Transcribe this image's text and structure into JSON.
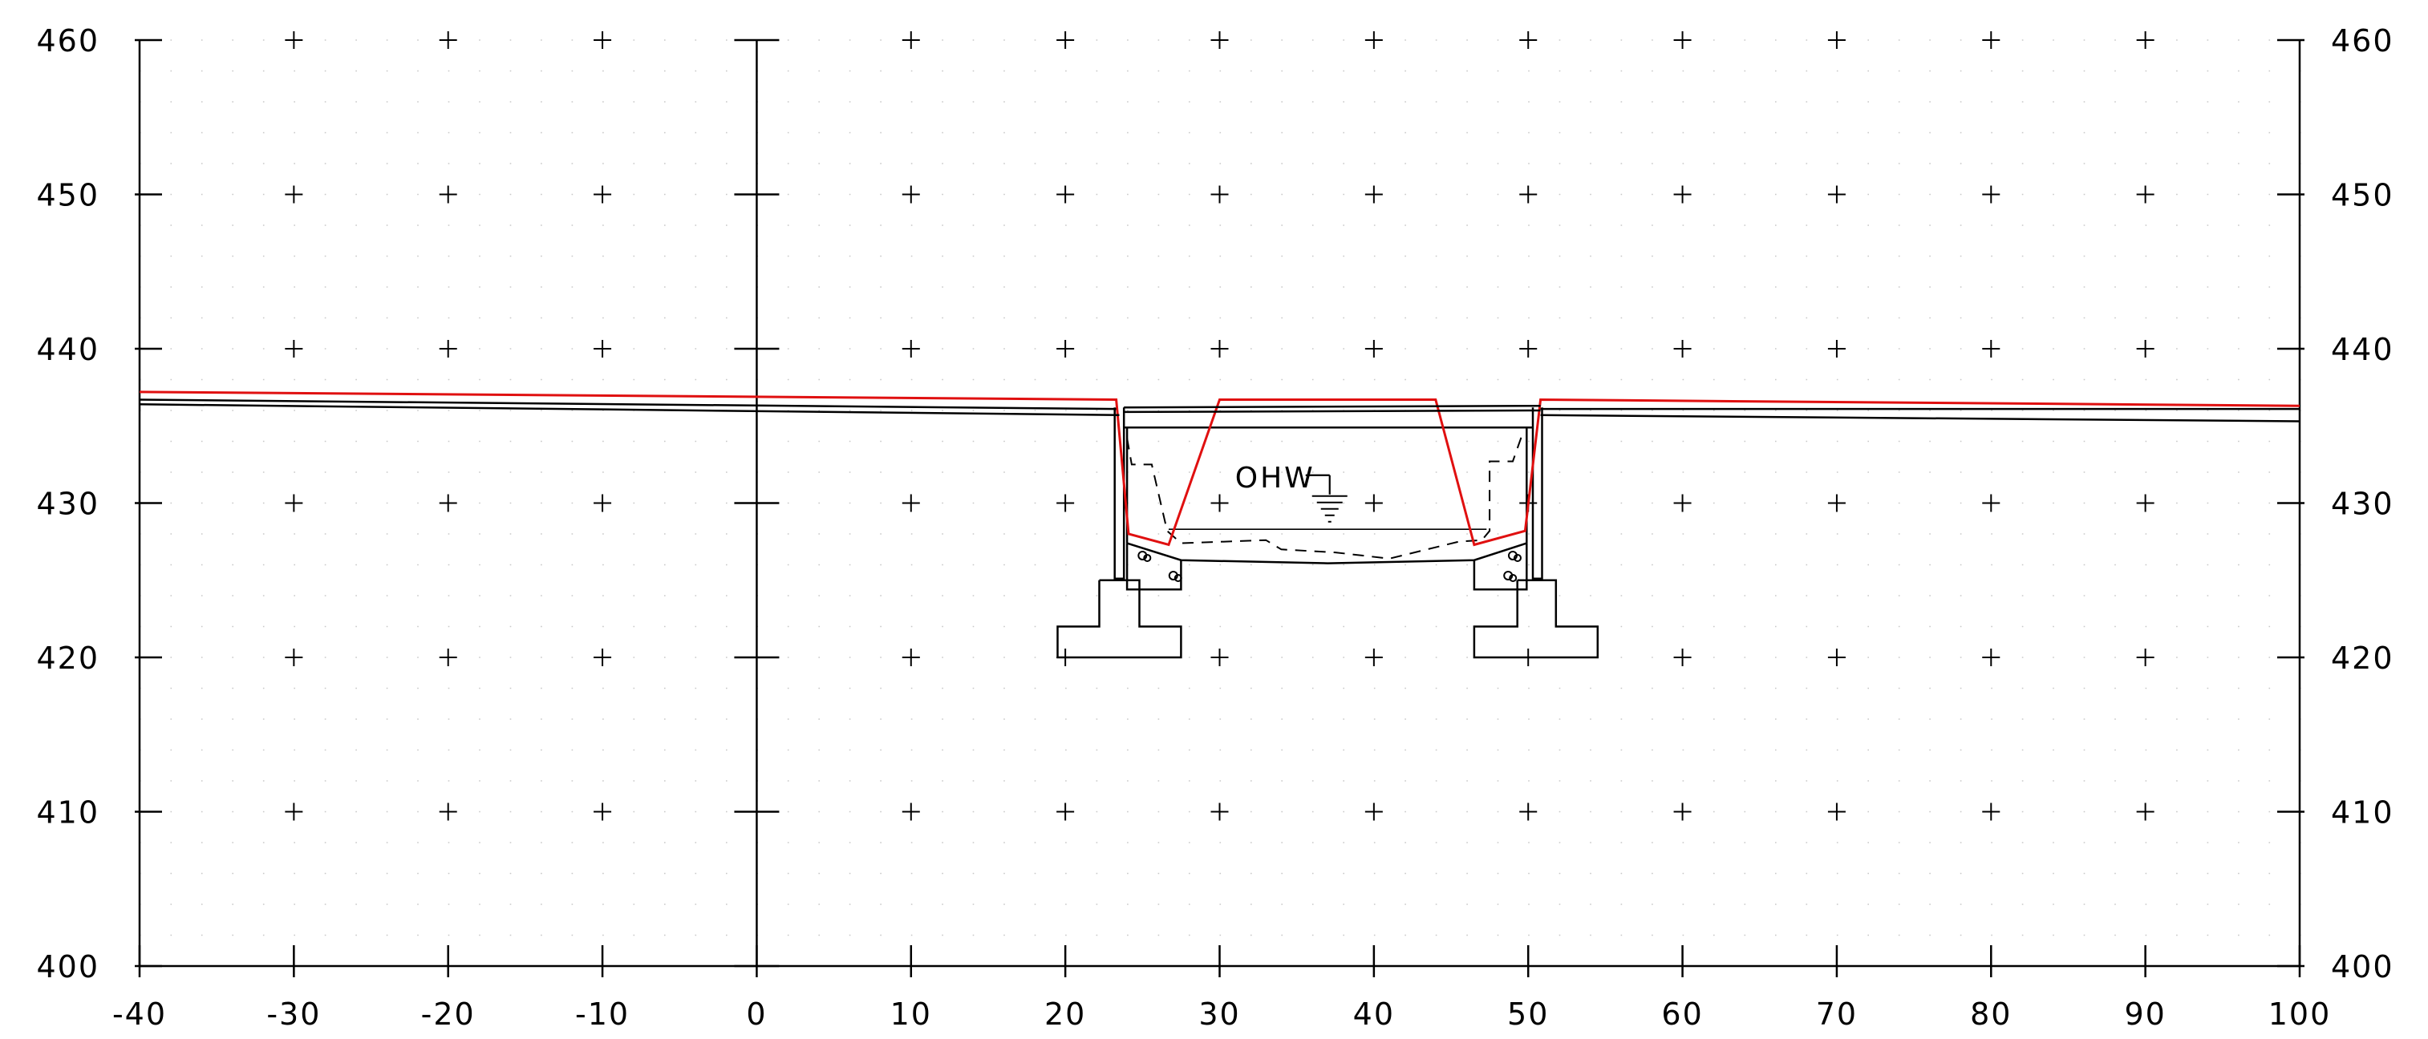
{
  "chart_data": {
    "type": "line",
    "title": "",
    "xlabel": "",
    "ylabel": "",
    "xlim": [
      -40,
      100
    ],
    "ylim": [
      400,
      460
    ],
    "x_ticks": [
      "-40",
      "-30",
      "-20",
      "-10",
      "0",
      "10",
      "20",
      "30",
      "40",
      "50",
      "60",
      "70",
      "80",
      "90",
      "100"
    ],
    "y_ticks_left": [
      "460",
      "450",
      "440",
      "430",
      "420",
      "410",
      "400"
    ],
    "y_ticks_right": [
      "460",
      "450",
      "440",
      "430",
      "420",
      "410",
      "400"
    ],
    "grid": "cross-markers",
    "colors": {
      "proposed": "#e01010",
      "existing": "#000000"
    },
    "series": [
      {
        "points": [
          [
            -40,
            437.2
          ],
          [
            23.3,
            436.7
          ],
          [
            24.1,
            428.0
          ],
          [
            26.7,
            427.3
          ],
          [
            30.0,
            436.7
          ],
          [
            44.0,
            436.7
          ],
          [
            46.5,
            427.3
          ],
          [
            49.8,
            428.2
          ],
          [
            50.8,
            436.7
          ],
          [
            100,
            436.3
          ]
        ]
      },
      {
        "points": [
          [
            -40,
            436.4
          ],
          [
            23.5,
            435.7
          ]
        ]
      },
      {
        "points": [
          [
            -40,
            436.7
          ],
          [
            23.3,
            436.1
          ]
        ]
      },
      {
        "points": [
          [
            23.8,
            436.2
          ],
          [
            50.8,
            436.3
          ]
        ]
      },
      {
        "points": [
          [
            23.8,
            435.9
          ],
          [
            50.8,
            436.0
          ]
        ]
      },
      {
        "points": [
          [
            50.8,
            436.1
          ],
          [
            100,
            436.1
          ]
        ]
      },
      {
        "points": [
          [
            50.8,
            435.7
          ],
          [
            100,
            435.3
          ]
        ]
      }
    ],
    "annotations": [
      {
        "text": "OHW",
        "x": 31.0,
        "y": 431.7
      }
    ]
  }
}
